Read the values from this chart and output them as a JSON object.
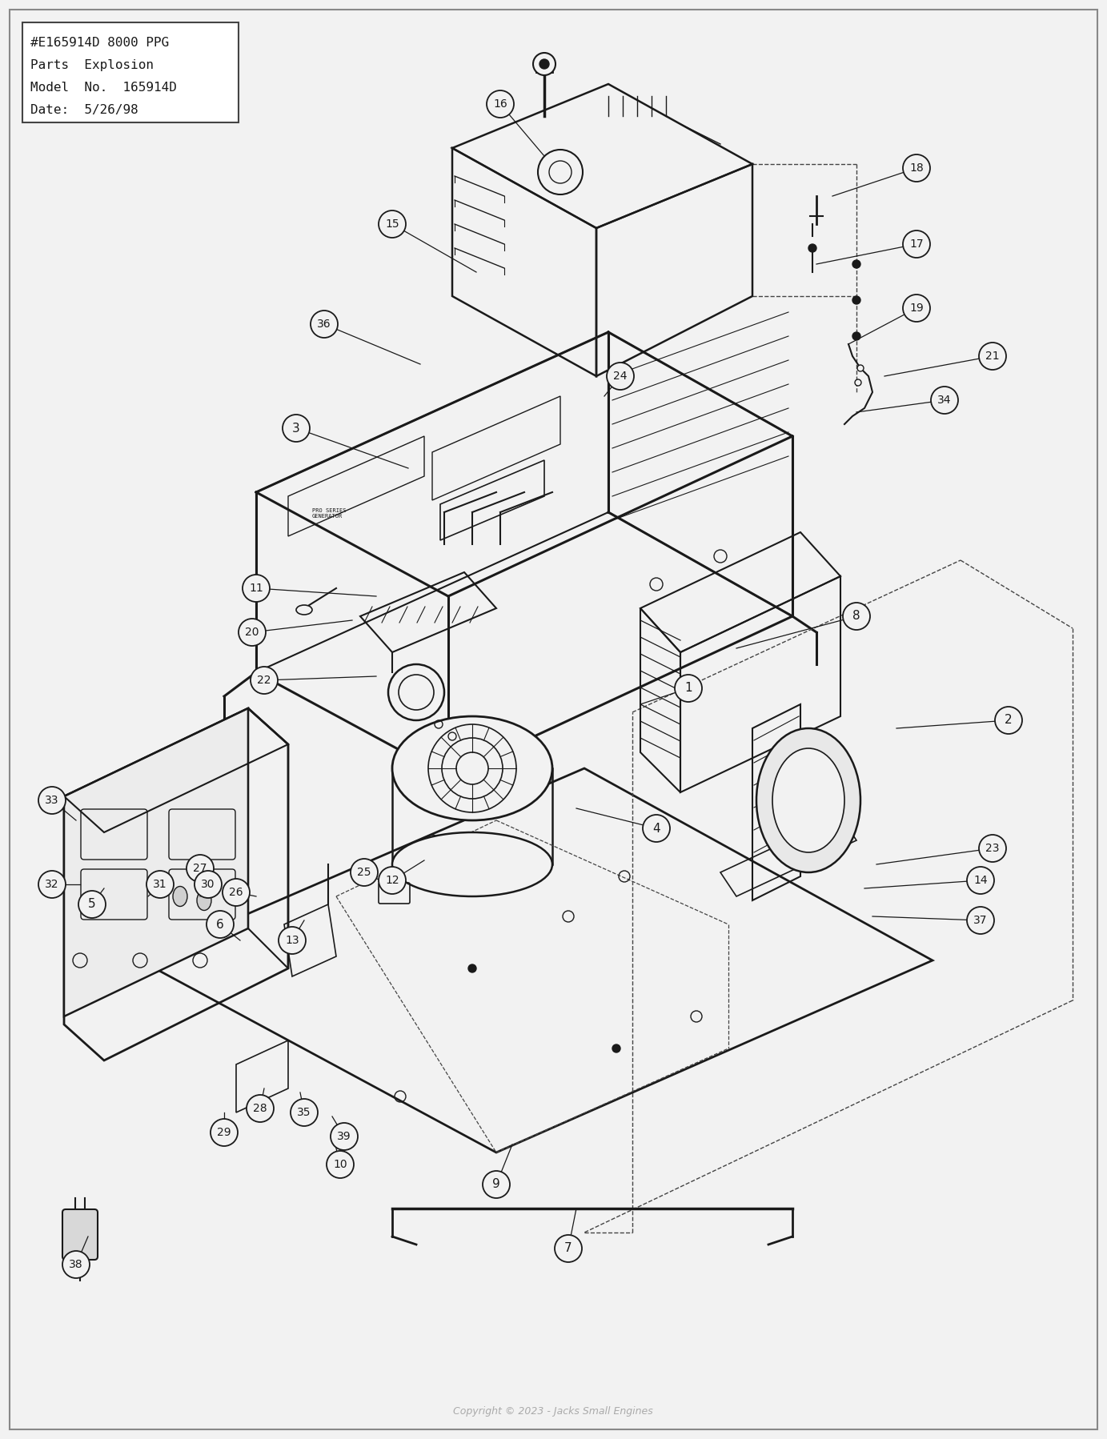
{
  "title_lines": [
    "#E165914D 8000 PPG",
    "Parts  Explosion",
    "Model  No.  165914D",
    "Date:  5/26/98"
  ],
  "bg_color": "#f2f2f2",
  "border_color": "#444444",
  "line_color": "#1a1a1a",
  "dashed_color": "#444444",
  "copyright_text": "Copyright © 2023 - Jacks Small Engines",
  "figsize": [
    13.83,
    17.98
  ],
  "dpi": 100,
  "parts": [
    [
      1,
      860,
      860,
      800,
      880
    ],
    [
      2,
      1260,
      900,
      1120,
      910
    ],
    [
      3,
      370,
      535,
      510,
      585
    ],
    [
      4,
      820,
      1035,
      720,
      1010
    ],
    [
      5,
      115,
      1130,
      130,
      1110
    ],
    [
      6,
      275,
      1155,
      300,
      1175
    ],
    [
      7,
      710,
      1560,
      720,
      1510
    ],
    [
      8,
      1070,
      770,
      920,
      810
    ],
    [
      9,
      620,
      1480,
      640,
      1430
    ],
    [
      10,
      425,
      1455,
      415,
      1415
    ],
    [
      11,
      320,
      735,
      470,
      745
    ],
    [
      12,
      490,
      1100,
      530,
      1075
    ],
    [
      13,
      365,
      1175,
      380,
      1150
    ],
    [
      14,
      1225,
      1100,
      1080,
      1110
    ],
    [
      15,
      490,
      280,
      595,
      340
    ],
    [
      16,
      625,
      130,
      680,
      195
    ],
    [
      17,
      1145,
      305,
      1020,
      330
    ],
    [
      18,
      1145,
      210,
      1040,
      245
    ],
    [
      19,
      1145,
      385,
      1060,
      430
    ],
    [
      20,
      315,
      790,
      440,
      775
    ],
    [
      21,
      1240,
      445,
      1105,
      470
    ],
    [
      22,
      330,
      850,
      470,
      845
    ],
    [
      23,
      1240,
      1060,
      1095,
      1080
    ],
    [
      24,
      775,
      470,
      755,
      495
    ],
    [
      25,
      455,
      1090,
      495,
      1110
    ],
    [
      26,
      295,
      1115,
      320,
      1120
    ],
    [
      27,
      250,
      1085,
      275,
      1100
    ],
    [
      28,
      325,
      1385,
      330,
      1360
    ],
    [
      29,
      280,
      1415,
      280,
      1390
    ],
    [
      30,
      260,
      1105,
      250,
      1120
    ],
    [
      31,
      200,
      1105,
      185,
      1120
    ],
    [
      32,
      65,
      1105,
      100,
      1105
    ],
    [
      33,
      65,
      1000,
      95,
      1025
    ],
    [
      34,
      1180,
      500,
      1070,
      515
    ],
    [
      35,
      380,
      1390,
      375,
      1365
    ],
    [
      36,
      405,
      405,
      525,
      455
    ],
    [
      37,
      1225,
      1150,
      1090,
      1145
    ],
    [
      38,
      95,
      1580,
      110,
      1545
    ],
    [
      39,
      430,
      1420,
      415,
      1395
    ]
  ]
}
